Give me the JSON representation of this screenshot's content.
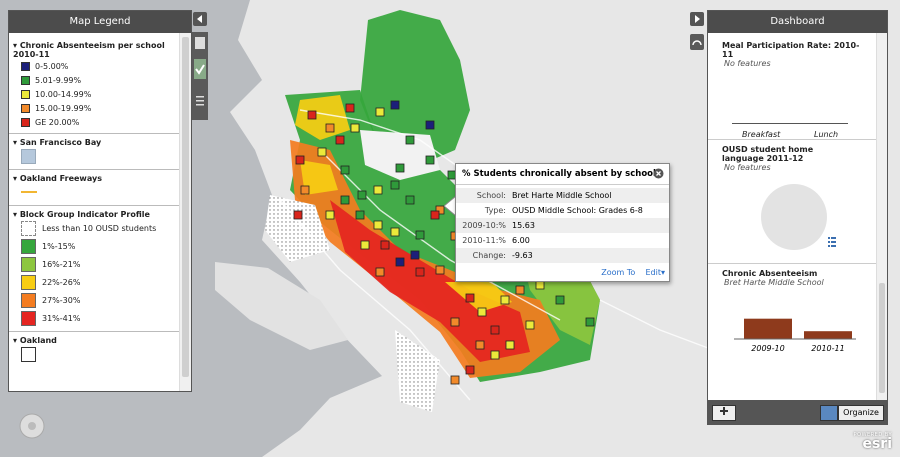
{
  "legend": {
    "title": "Map Legend",
    "layers": [
      {
        "title": "Chronic Absenteeism per school 2010-11",
        "items": [
          {
            "label": "0-5.00%",
            "color": "#1c1f7a"
          },
          {
            "label": "5.01-9.99%",
            "color": "#2f9a3a"
          },
          {
            "label": "10.00-14.99%",
            "color": "#ece93a"
          },
          {
            "label": "15.00-19.99%",
            "color": "#f28a2a"
          },
          {
            "label": "GE 20.00%",
            "color": "#d9251c"
          }
        ]
      },
      {
        "title": "San Francisco Bay",
        "color": "#b5c8dc"
      },
      {
        "title": "Oakland Freeways",
        "color": "#f2b632"
      },
      {
        "title": "Block Group Indicator Profile",
        "items": [
          {
            "label": "Less than 10 OUSD students"
          },
          {
            "label": "1%-15%",
            "color": "#35a63c"
          },
          {
            "label": "16%-21%",
            "color": "#8dc63f"
          },
          {
            "label": "22%-26%",
            "color": "#f7cd14"
          },
          {
            "label": "27%-30%",
            "color": "#f47c20"
          },
          {
            "label": "31%-41%",
            "color": "#e52521"
          }
        ]
      },
      {
        "title": "Oakland"
      }
    ]
  },
  "popup": {
    "title": "% Students chronically absent by school",
    "rows": [
      {
        "label": "School:",
        "value": "Bret Harte Middle School"
      },
      {
        "label": "Type:",
        "value": "OUSD Middle School: Grades 6-8"
      },
      {
        "label": "2009-10:%",
        "value": "15.63"
      },
      {
        "label": "2010-11:%",
        "value": "6.00"
      },
      {
        "label": "Change:",
        "value": "-9.63"
      }
    ],
    "links": [
      "Zoom To",
      "Edit"
    ]
  },
  "dashboard": {
    "title": "Dashboard",
    "widgets": [
      {
        "title": "Meal Participation Rate: 2010-11",
        "note": "No features",
        "categories": [
          "Breakfast",
          "Lunch"
        ]
      },
      {
        "title": "OUSD student home language 2011-12",
        "note": "No features"
      },
      {
        "title": "Chronic Absenteeism",
        "subtitle": "Bret Harte Middle School",
        "chart": {
          "type": "bar",
          "categories": [
            "2009-10",
            "2010-11"
          ],
          "values": [
            15.63,
            6.0
          ],
          "color": "#8e3a1c"
        }
      }
    ],
    "button": "Organize"
  },
  "attribution": {
    "powered_by": "POWERED BY",
    "brand": "esri"
  }
}
